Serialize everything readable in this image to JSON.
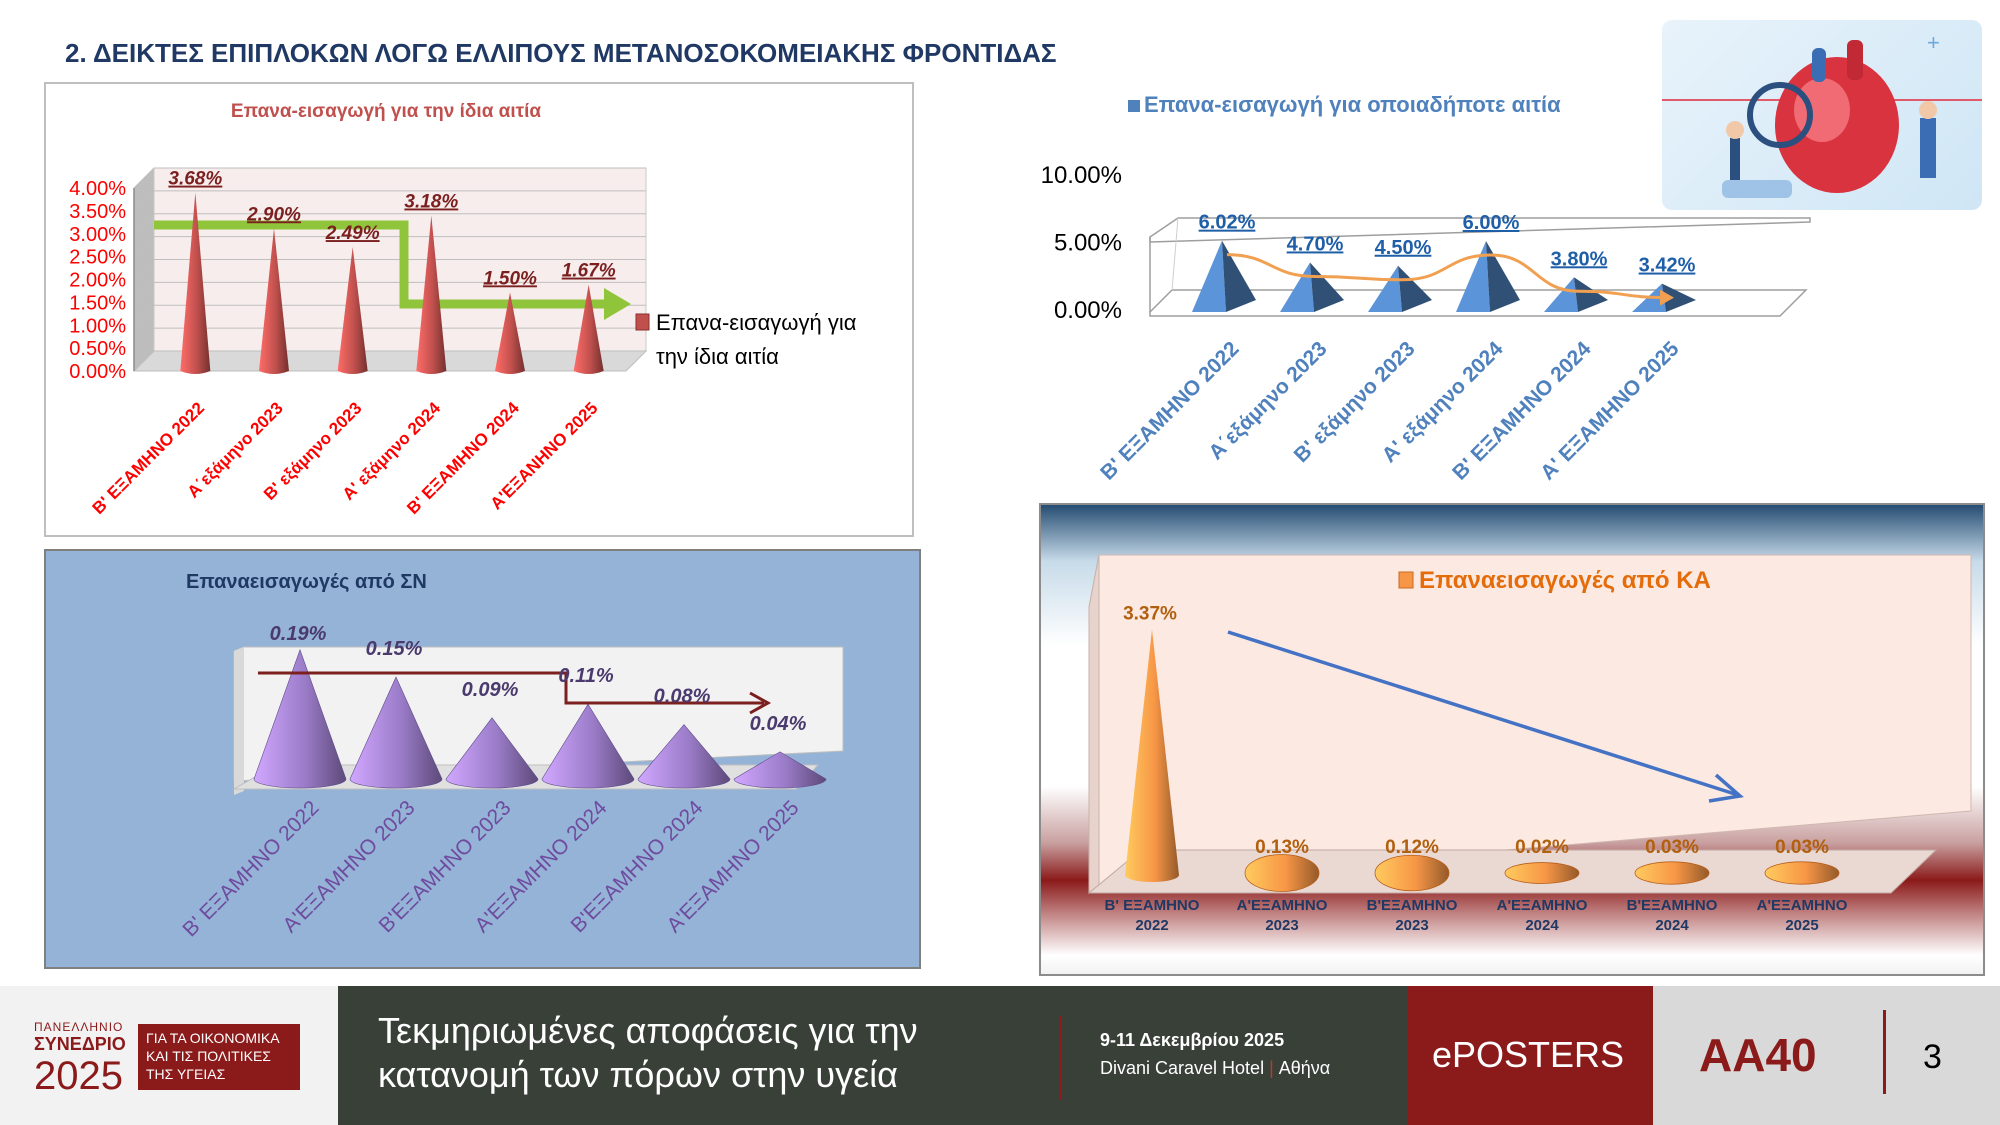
{
  "slide_title": "2. ΔΕΙΚΤΕΣ ΕΠΙΠΛΟΚΩΝ ΛΟΓΩ ΕΛΛΙΠΟΥΣ ΜΕΤΑΝΟΣΟΚΟΜΕΙΑΚΗΣ ΦΡΟΝΤΙΔΑΣ",
  "colors": {
    "chart1_series": "#c0504d",
    "chart2_series": "#4f81bd",
    "chart3_series": "#8064a2",
    "chart4_series": "#f79646",
    "title_blue": "#1f3864",
    "footer_red": "#8b1a1a"
  },
  "chart_data": [
    {
      "type": "bar",
      "title": "Επανα-εισαγωγή για την ίδια αιτία",
      "categories": [
        "Β' ΕΞΑΜΗΝΟ 2022",
        "Α΄εξάμηνο 2023",
        "Β' εξάμηνο 2023",
        "Α' εξάμηνο 2024",
        "Β' ΕΞΑΜΗΝΟ 2024",
        "Α'ΕΞΑΝΗΝΟ 2025"
      ],
      "series": [
        {
          "name": "Επανα-εισαγωγή για την ίδια αιτία",
          "values": [
            3.68,
            2.9,
            2.49,
            3.18,
            1.5,
            1.67
          ]
        }
      ],
      "value_labels": [
        "3.68%",
        "2.90%",
        "2.49%",
        "3.18%",
        "1.50%",
        "1.67%"
      ],
      "y_ticks": [
        "4.00%",
        "3.50%",
        "3.00%",
        "2.50%",
        "2.00%",
        "1.50%",
        "1.00%",
        "0.50%",
        "0.00%"
      ],
      "ylim": [
        0,
        4
      ],
      "legend": "right",
      "grid": true
    },
    {
      "type": "bar",
      "title": "Επανα-εισαγωγή για οποιαδήποτε αιτία",
      "categories": [
        "Β' ΕΞΑΜΗΝΟ 2022",
        "Α΄εξάμηνο 2023",
        "Β' εξάμηνο 2023",
        "Α' εξάμηνο 2024",
        "Β' ΕΞΑΜΗΝΟ 2024",
        "Α' ΕΞΑΜΗΝΟ 2025"
      ],
      "series": [
        {
          "name": "Επανα-εισαγωγή για οποιαδήποτε αιτία",
          "values": [
            6.02,
            4.7,
            4.5,
            6.0,
            3.8,
            3.42
          ]
        }
      ],
      "value_labels": [
        "6.02%",
        "4.70%",
        "4.50%",
        "6.00%",
        "3.80%",
        "3.42%"
      ],
      "y_ticks": [
        "10.00%",
        "5.00%",
        "0.00%"
      ],
      "ylim": [
        0,
        10
      ],
      "legend": "top",
      "grid": false
    },
    {
      "type": "bar",
      "title": "Επαναεισαγωγές από ΣΝ",
      "categories": [
        "Β' ΕΞΑΜΗΝΟ 2022",
        "Α'ΕΞΑΜΗΝΟ 2023",
        "Β'ΕΞΑΜΗΝΟ 2023",
        "Α'ΕΞΑΜΗΝΟ 2024",
        "Β'ΕΞΑΜΗΝΟ 2024",
        "Α'ΕΞΑΜΗΝΟ 2025"
      ],
      "series": [
        {
          "values": [
            0.19,
            0.15,
            0.09,
            0.11,
            0.08,
            0.04
          ]
        }
      ],
      "value_labels": [
        "0.19%",
        "0.15%",
        "0.09%",
        "0.11%",
        "0.08%",
        "0.04%"
      ],
      "ylim": [
        0,
        0.2
      ],
      "grid": false
    },
    {
      "type": "bar",
      "title": "Επαναεισαγωγές από ΚΑ",
      "categories": [
        "Β' ΕΞΑΜΗΝΟ 2022",
        "Α'ΕΞΑΜΗΝΟ 2023",
        "Β'ΕΞΑΜΗΝΟ 2023",
        "Α'ΕΞΑΜΗΝΟ 2024",
        "Β'ΕΞΑΜΗΝΟ 2024",
        "Α'ΕΞΑΜΗΝΟ 2025"
      ],
      "category_lines": [
        [
          "Β' ΕΞΑΜΗΝΟ",
          "2022"
        ],
        [
          "Α'ΕΞΑΜΗΝΟ",
          "2023"
        ],
        [
          "Β'ΕΞΑΜΗΝΟ",
          "2023"
        ],
        [
          "Α'ΕΞΑΜΗΝΟ",
          "2024"
        ],
        [
          "Β'ΕΞΑΜΗΝΟ",
          "2024"
        ],
        [
          "Α'ΕΞΑΜΗΝΟ",
          "2025"
        ]
      ],
      "series": [
        {
          "name": "Επαναεισαγωγές από ΚΑ",
          "values": [
            3.37,
            0.13,
            0.12,
            0.02,
            0.03,
            0.03
          ]
        }
      ],
      "value_labels": [
        "3.37%",
        "0.13%",
        "0.12%",
        "0.02%",
        "0.03%",
        "0.03%"
      ],
      "ylim": [
        0,
        3.5
      ],
      "legend": "top",
      "grid": false
    }
  ],
  "footer": {
    "logo_line1": "ΠΑΝΕΛΛΗΝΙΟ",
    "logo_line2": "ΣΥΝΕΔΡΙΟ",
    "logo_year": "2025",
    "logo_tag1": "ΓΙΑ ΤΑ ΟΙΚΟΝΟΜΙΚΑ",
    "logo_tag2": "ΚΑΙ ΤΙΣ ΠΟΛΙΤΙΚΕΣ",
    "logo_tag3": "ΤΗΣ ΥΓΕΙΑΣ",
    "theme_line1": "Τεκμηριωμένες αποφάσεις για την",
    "theme_line2": "κατανομή των πόρων στην υγεία",
    "dates": "9-11 Δεκεμβρίου 2025",
    "venue_hotel": "Divani Caravel Hotel",
    "venue_city": "Αθήνα",
    "eposters": "ePOSTERS",
    "poster_code": "AA40",
    "page_number": "3"
  }
}
